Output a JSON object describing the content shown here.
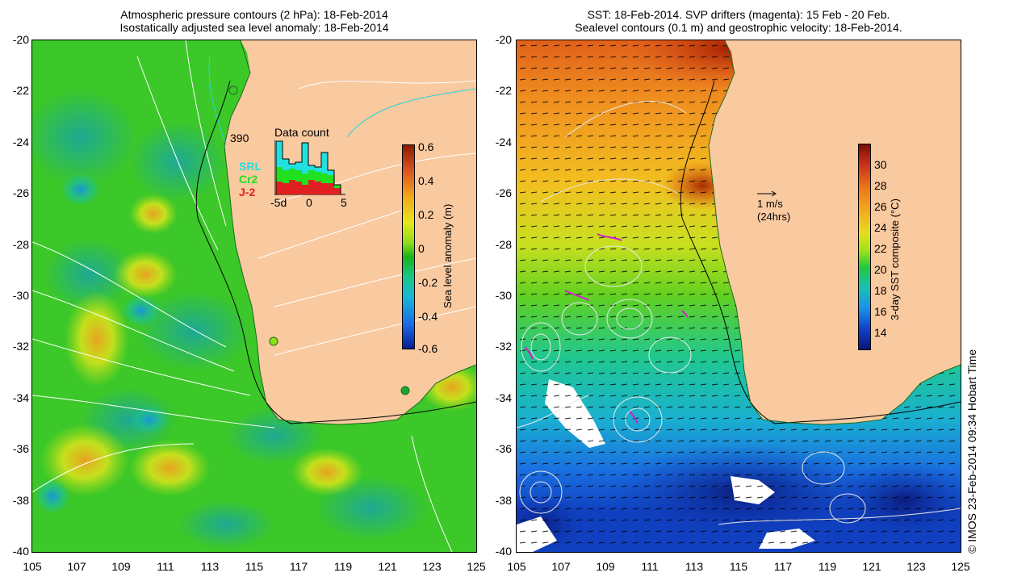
{
  "left_panel": {
    "title_line1": "Atmospheric pressure contours (2 hPa): 18-Feb-2014",
    "title_line2": "Isostatically adjusted sea level anomaly: 18-Feb-2014",
    "colorbar": {
      "label": "Sea level anomaly (m)",
      "ticks": [
        "0.6",
        "0.4",
        "0.2",
        "0",
        "-0.2",
        "-0.4",
        "-0.6"
      ],
      "colors": [
        "#8b1a00",
        "#d8501f",
        "#f2a51a",
        "#e6e61a",
        "#8fdc1a",
        "#1ab21a",
        "#1ac78a",
        "#1ab4d8",
        "#1a6ae6",
        "#0a1a8c"
      ]
    },
    "inset": {
      "title": "Data count",
      "max_label": "390",
      "x_labels": [
        "-5d",
        "0",
        "5"
      ],
      "legend": [
        {
          "name": "SRL",
          "color": "#20e0e0"
        },
        {
          "name": "Cr2",
          "color": "#20e020"
        },
        {
          "name": "J-2",
          "color": "#e02020"
        }
      ]
    }
  },
  "right_panel": {
    "title_line1": "SST: 18-Feb-2014. SVP drifters (magenta): 15 Feb - 20 Feb.",
    "title_line2": "Sealevel contours (0.1 m) and geostrophic velocity: 18-Feb-2014.",
    "velocity_scale": {
      "label": "1 m/s",
      "sub": "(24hrs)"
    },
    "colorbar": {
      "label": "3-day SST composite (°C)",
      "ticks": [
        "30",
        "28",
        "26",
        "24",
        "22",
        "20",
        "18",
        "16",
        "14"
      ],
      "colors": [
        "#7a0d00",
        "#c83218",
        "#ee7a1a",
        "#f4b020",
        "#e0e020",
        "#9ee01a",
        "#20c83c",
        "#1ac0b8",
        "#1a90e6",
        "#1040c8",
        "#0a1470"
      ]
    }
  },
  "axes": {
    "y_ticks": [
      "-20",
      "-22",
      "-24",
      "-26",
      "-28",
      "-30",
      "-32",
      "-34",
      "-36",
      "-38",
      "-40"
    ],
    "x_ticks": [
      "105",
      "107",
      "109",
      "111",
      "113",
      "115",
      "117",
      "119",
      "121",
      "123",
      "125"
    ]
  },
  "land_color": "#f9c9a0",
  "credit": "© IMOS 23-Feb-2014 09:34 Hobart Time"
}
